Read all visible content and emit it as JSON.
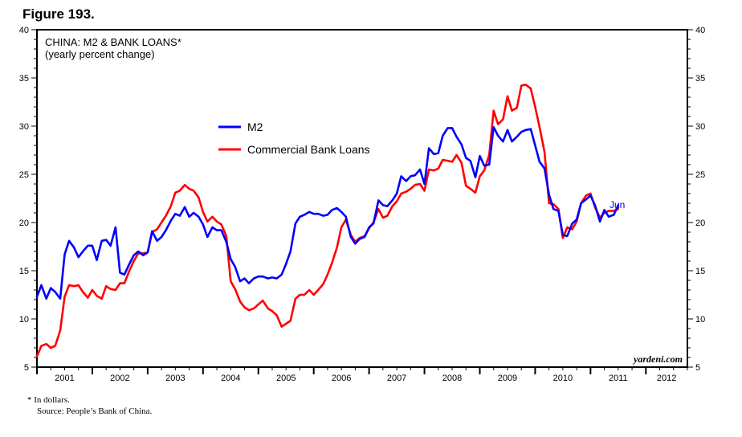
{
  "figure_label": "Figure 193.",
  "footnote": "*   In dollars.",
  "source": "Source: People’s Bank of China.",
  "colors": {
    "m2": "#0000ff",
    "loans": "#ff0000",
    "axis": "#000000",
    "annotation": "#0000ff"
  },
  "chart_data": {
    "type": "line",
    "title": "CHINA: M2 & BANK LOANS*",
    "subtitle": "(yearly percent change)",
    "watermark": "yardeni.com",
    "annotation": "Jun",
    "ylim": [
      5,
      40
    ],
    "yticks": [
      5,
      10,
      15,
      20,
      25,
      30,
      35,
      40
    ],
    "xlim": [
      2001,
      2012.75
    ],
    "xticks": [
      "2001",
      "2002",
      "2003",
      "2004",
      "2005",
      "2006",
      "2007",
      "2008",
      "2009",
      "2010",
      "2011",
      "2012"
    ],
    "grid": false,
    "legend_position": "upper-center",
    "series": [
      {
        "name": "M2",
        "color": "#0000ff",
        "points": [
          [
            2001.0,
            12.3
          ],
          [
            2001.08,
            13.5
          ],
          [
            2001.17,
            12.1
          ],
          [
            2001.25,
            13.2
          ],
          [
            2001.33,
            12.8
          ],
          [
            2001.42,
            12.1
          ],
          [
            2001.5,
            16.7
          ],
          [
            2001.58,
            18.1
          ],
          [
            2001.67,
            17.4
          ],
          [
            2001.75,
            16.4
          ],
          [
            2001.83,
            17.0
          ],
          [
            2001.92,
            17.6
          ],
          [
            2002.0,
            17.6
          ],
          [
            2002.08,
            16.1
          ],
          [
            2002.17,
            18.1
          ],
          [
            2002.25,
            18.2
          ],
          [
            2002.33,
            17.6
          ],
          [
            2002.42,
            19.5
          ],
          [
            2002.5,
            14.8
          ],
          [
            2002.58,
            14.6
          ],
          [
            2002.67,
            15.7
          ],
          [
            2002.75,
            16.6
          ],
          [
            2002.83,
            17.0
          ],
          [
            2002.92,
            16.6
          ],
          [
            2003.0,
            16.9
          ],
          [
            2003.08,
            19.1
          ],
          [
            2003.17,
            18.1
          ],
          [
            2003.25,
            18.5
          ],
          [
            2003.33,
            19.2
          ],
          [
            2003.42,
            20.2
          ],
          [
            2003.5,
            20.9
          ],
          [
            2003.58,
            20.7
          ],
          [
            2003.67,
            21.6
          ],
          [
            2003.75,
            20.6
          ],
          [
            2003.83,
            21.0
          ],
          [
            2003.92,
            20.6
          ],
          [
            2004.0,
            19.8
          ],
          [
            2004.08,
            18.5
          ],
          [
            2004.17,
            19.5
          ],
          [
            2004.25,
            19.2
          ],
          [
            2004.33,
            19.2
          ],
          [
            2004.42,
            18.0
          ],
          [
            2004.5,
            16.2
          ],
          [
            2004.58,
            15.4
          ],
          [
            2004.67,
            13.9
          ],
          [
            2004.75,
            14.2
          ],
          [
            2004.83,
            13.7
          ],
          [
            2004.92,
            14.2
          ],
          [
            2005.0,
            14.4
          ],
          [
            2005.08,
            14.4
          ],
          [
            2005.17,
            14.2
          ],
          [
            2005.25,
            14.3
          ],
          [
            2005.33,
            14.2
          ],
          [
            2005.42,
            14.6
          ],
          [
            2005.5,
            15.7
          ],
          [
            2005.58,
            17.0
          ],
          [
            2005.67,
            19.9
          ],
          [
            2005.75,
            20.6
          ],
          [
            2005.83,
            20.8
          ],
          [
            2005.92,
            21.1
          ],
          [
            2006.0,
            20.9
          ],
          [
            2006.08,
            20.9
          ],
          [
            2006.17,
            20.7
          ],
          [
            2006.25,
            20.8
          ],
          [
            2006.33,
            21.3
          ],
          [
            2006.42,
            21.5
          ],
          [
            2006.5,
            21.1
          ],
          [
            2006.58,
            20.6
          ],
          [
            2006.67,
            18.5
          ],
          [
            2006.75,
            17.8
          ],
          [
            2006.83,
            18.3
          ],
          [
            2006.92,
            18.5
          ],
          [
            2007.0,
            19.5
          ],
          [
            2007.08,
            19.9
          ],
          [
            2007.17,
            22.3
          ],
          [
            2007.25,
            21.8
          ],
          [
            2007.33,
            21.7
          ],
          [
            2007.42,
            22.3
          ],
          [
            2007.5,
            23.0
          ],
          [
            2007.58,
            24.8
          ],
          [
            2007.67,
            24.3
          ],
          [
            2007.75,
            24.8
          ],
          [
            2007.83,
            24.9
          ],
          [
            2007.92,
            25.5
          ],
          [
            2008.0,
            24.0
          ],
          [
            2008.08,
            27.7
          ],
          [
            2008.17,
            27.1
          ],
          [
            2008.25,
            27.2
          ],
          [
            2008.33,
            29.0
          ],
          [
            2008.42,
            29.8
          ],
          [
            2008.5,
            29.8
          ],
          [
            2008.58,
            28.9
          ],
          [
            2008.67,
            28.1
          ],
          [
            2008.75,
            26.7
          ],
          [
            2008.83,
            26.4
          ],
          [
            2008.92,
            24.7
          ],
          [
            2009.0,
            26.9
          ],
          [
            2009.08,
            25.9
          ],
          [
            2009.17,
            26.0
          ],
          [
            2009.25,
            29.9
          ],
          [
            2009.33,
            29.0
          ],
          [
            2009.42,
            28.4
          ],
          [
            2009.5,
            29.6
          ],
          [
            2009.58,
            28.4
          ],
          [
            2009.67,
            28.9
          ],
          [
            2009.75,
            29.4
          ],
          [
            2009.83,
            29.6
          ],
          [
            2009.92,
            29.7
          ],
          [
            2010.0,
            28.0
          ],
          [
            2010.08,
            26.3
          ],
          [
            2010.17,
            25.6
          ],
          [
            2010.25,
            22.9
          ],
          [
            2010.33,
            21.4
          ],
          [
            2010.42,
            21.2
          ],
          [
            2010.5,
            18.7
          ],
          [
            2010.58,
            18.6
          ],
          [
            2010.67,
            19.9
          ],
          [
            2010.75,
            20.3
          ],
          [
            2010.83,
            22.0
          ],
          [
            2010.92,
            22.4
          ],
          [
            2011.0,
            22.8
          ],
          [
            2011.08,
            21.8
          ],
          [
            2011.17,
            20.1
          ],
          [
            2011.25,
            21.3
          ],
          [
            2011.33,
            20.6
          ],
          [
            2011.42,
            20.8
          ],
          [
            2011.5,
            21.8
          ]
        ]
      },
      {
        "name": "Commercial Bank Loans",
        "color": "#ff0000",
        "points": [
          [
            2001.0,
            6.1
          ],
          [
            2001.08,
            7.2
          ],
          [
            2001.17,
            7.4
          ],
          [
            2001.25,
            7.0
          ],
          [
            2001.33,
            7.2
          ],
          [
            2001.42,
            8.8
          ],
          [
            2001.5,
            12.3
          ],
          [
            2001.58,
            13.5
          ],
          [
            2001.67,
            13.4
          ],
          [
            2001.75,
            13.5
          ],
          [
            2001.83,
            12.8
          ],
          [
            2001.92,
            12.2
          ],
          [
            2002.0,
            13.0
          ],
          [
            2002.08,
            12.4
          ],
          [
            2002.17,
            12.1
          ],
          [
            2002.25,
            13.4
          ],
          [
            2002.33,
            13.1
          ],
          [
            2002.42,
            13.0
          ],
          [
            2002.5,
            13.7
          ],
          [
            2002.58,
            13.7
          ],
          [
            2002.67,
            15.0
          ],
          [
            2002.75,
            16.0
          ],
          [
            2002.83,
            16.8
          ],
          [
            2002.92,
            16.8
          ],
          [
            2003.0,
            16.9
          ],
          [
            2003.08,
            19.0
          ],
          [
            2003.17,
            19.3
          ],
          [
            2003.25,
            20.0
          ],
          [
            2003.33,
            20.7
          ],
          [
            2003.42,
            21.7
          ],
          [
            2003.5,
            23.1
          ],
          [
            2003.58,
            23.3
          ],
          [
            2003.67,
            23.9
          ],
          [
            2003.75,
            23.5
          ],
          [
            2003.83,
            23.3
          ],
          [
            2003.92,
            22.6
          ],
          [
            2004.0,
            21.1
          ],
          [
            2004.08,
            20.1
          ],
          [
            2004.17,
            20.6
          ],
          [
            2004.25,
            20.1
          ],
          [
            2004.33,
            19.8
          ],
          [
            2004.42,
            18.6
          ],
          [
            2004.5,
            13.9
          ],
          [
            2004.58,
            13.1
          ],
          [
            2004.67,
            11.8
          ],
          [
            2004.75,
            11.2
          ],
          [
            2004.83,
            10.9
          ],
          [
            2004.92,
            11.1
          ],
          [
            2005.0,
            11.5
          ],
          [
            2005.08,
            11.9
          ],
          [
            2005.17,
            11.1
          ],
          [
            2005.25,
            10.8
          ],
          [
            2005.33,
            10.4
          ],
          [
            2005.42,
            9.2
          ],
          [
            2005.5,
            9.5
          ],
          [
            2005.58,
            9.8
          ],
          [
            2005.67,
            12.1
          ],
          [
            2005.75,
            12.5
          ],
          [
            2005.83,
            12.5
          ],
          [
            2005.92,
            13.0
          ],
          [
            2006.0,
            12.5
          ],
          [
            2006.08,
            13.0
          ],
          [
            2006.17,
            13.6
          ],
          [
            2006.25,
            14.6
          ],
          [
            2006.33,
            15.8
          ],
          [
            2006.42,
            17.4
          ],
          [
            2006.5,
            19.5
          ],
          [
            2006.58,
            20.3
          ],
          [
            2006.67,
            18.7
          ],
          [
            2006.75,
            18.0
          ],
          [
            2006.83,
            18.4
          ],
          [
            2006.92,
            18.6
          ],
          [
            2007.0,
            19.4
          ],
          [
            2007.08,
            20.0
          ],
          [
            2007.17,
            21.4
          ],
          [
            2007.25,
            20.5
          ],
          [
            2007.33,
            20.7
          ],
          [
            2007.42,
            21.7
          ],
          [
            2007.5,
            22.2
          ],
          [
            2007.58,
            23.0
          ],
          [
            2007.67,
            23.2
          ],
          [
            2007.75,
            23.5
          ],
          [
            2007.83,
            23.9
          ],
          [
            2007.92,
            24.0
          ],
          [
            2008.0,
            23.3
          ],
          [
            2008.08,
            25.5
          ],
          [
            2008.17,
            25.4
          ],
          [
            2008.25,
            25.6
          ],
          [
            2008.33,
            26.5
          ],
          [
            2008.42,
            26.4
          ],
          [
            2008.5,
            26.3
          ],
          [
            2008.58,
            27.0
          ],
          [
            2008.67,
            26.2
          ],
          [
            2008.75,
            23.8
          ],
          [
            2008.83,
            23.5
          ],
          [
            2008.92,
            23.1
          ],
          [
            2009.0,
            24.8
          ],
          [
            2009.08,
            25.4
          ],
          [
            2009.17,
            27.0
          ],
          [
            2009.25,
            31.6
          ],
          [
            2009.33,
            30.2
          ],
          [
            2009.42,
            30.7
          ],
          [
            2009.5,
            33.1
          ],
          [
            2009.58,
            31.6
          ],
          [
            2009.67,
            31.9
          ],
          [
            2009.75,
            34.2
          ],
          [
            2009.83,
            34.3
          ],
          [
            2009.92,
            33.9
          ],
          [
            2010.0,
            32.0
          ],
          [
            2010.08,
            29.9
          ],
          [
            2010.17,
            27.3
          ],
          [
            2010.25,
            22.0
          ],
          [
            2010.33,
            21.9
          ],
          [
            2010.42,
            21.4
          ],
          [
            2010.5,
            18.4
          ],
          [
            2010.58,
            19.5
          ],
          [
            2010.67,
            19.3
          ],
          [
            2010.75,
            20.1
          ],
          [
            2010.83,
            22.0
          ],
          [
            2010.92,
            22.8
          ],
          [
            2011.0,
            23.0
          ],
          [
            2011.08,
            21.6
          ],
          [
            2011.17,
            20.5
          ],
          [
            2011.25,
            21.0
          ],
          [
            2011.33,
            21.2
          ],
          [
            2011.42,
            21.2
          ],
          [
            2011.5,
            21.4
          ]
        ]
      }
    ]
  }
}
